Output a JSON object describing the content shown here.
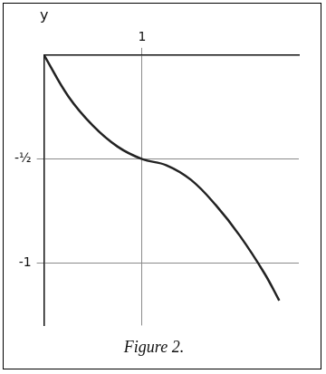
{
  "chart_data": {
    "type": "line",
    "title": "Figure 2.",
    "ylabel": "y",
    "x": [
      0,
      0.25,
      0.5,
      0.75,
      1,
      1.25,
      1.5,
      1.75,
      2,
      2.25,
      2.4
    ],
    "values": [
      0,
      -0.2,
      -0.34,
      -0.44,
      -0.5,
      -0.53,
      -0.6,
      -0.72,
      -0.87,
      -1.05,
      -1.18
    ],
    "color": "#222222",
    "xlim": [
      0,
      2.6
    ],
    "xticks": [
      1
    ],
    "ylim": [
      -1.3,
      0
    ],
    "yticks": [
      {
        "value": -0.5,
        "label": "-½"
      },
      -1
    ],
    "grid": true
  }
}
